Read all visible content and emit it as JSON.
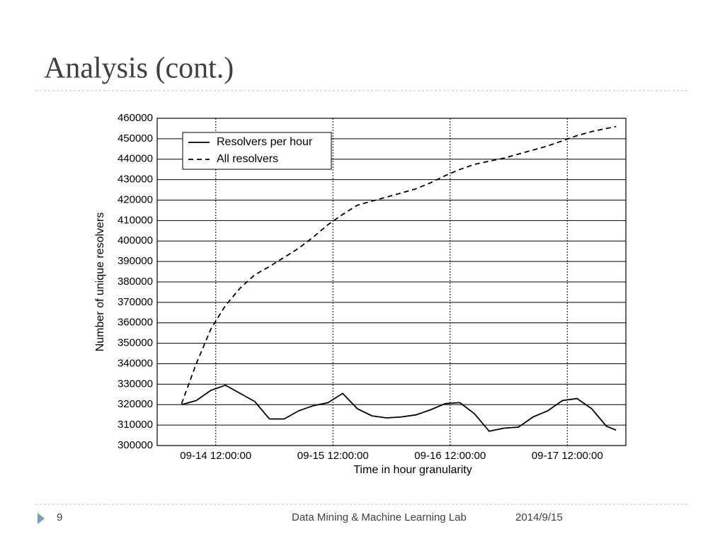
{
  "slide": {
    "title": "Analysis (cont.)",
    "page_number": "9",
    "footer": "Data Mining & Machine Learning Lab",
    "date": "2014/9/15"
  },
  "chart_data": {
    "type": "line",
    "x_label": "Time in hour granularity",
    "y_label": "Number of unique resolvers",
    "x": [
      "09-14 05:00:00",
      "09-14 08:00:00",
      "09-14 11:00:00",
      "09-14 14:00:00",
      "09-14 17:00:00",
      "09-14 20:00:00",
      "09-14 23:00:00",
      "09-15 02:00:00",
      "09-15 05:00:00",
      "09-15 08:00:00",
      "09-15 11:00:00",
      "09-15 14:00:00",
      "09-15 17:00:00",
      "09-15 20:00:00",
      "09-15 23:00:00",
      "09-16 02:00:00",
      "09-16 05:00:00",
      "09-16 08:00:00",
      "09-16 11:00:00",
      "09-16 14:00:00",
      "09-16 17:00:00",
      "09-16 20:00:00",
      "09-16 23:00:00",
      "09-17 02:00:00",
      "09-17 05:00:00",
      "09-17 08:00:00",
      "09-17 11:00:00",
      "09-17 14:00:00",
      "09-17 17:00:00",
      "09-17 20:00:00",
      "09-17 22:00:00"
    ],
    "series": [
      {
        "name": "Resolvers per hour",
        "color": "#000000",
        "dash": "solid",
        "values": [
          320000,
          322000,
          327000,
          329500,
          325500,
          321500,
          313000,
          313000,
          317000,
          319500,
          321000,
          325500,
          318000,
          314500,
          313500,
          314000,
          315000,
          317500,
          320500,
          321000,
          315500,
          307000,
          308500,
          309000,
          314000,
          317000,
          322000,
          323000,
          318000,
          309500,
          307500
        ]
      },
      {
        "name": "All resolvers",
        "color": "#000000",
        "dash": "dashed",
        "values": [
          320500,
          340000,
          357000,
          368500,
          377000,
          383500,
          387500,
          392000,
          396500,
          402000,
          408000,
          413000,
          417500,
          419500,
          421500,
          423500,
          425500,
          428500,
          432000,
          435000,
          437500,
          439000,
          440500,
          442500,
          444500,
          446500,
          449000,
          451500,
          453500,
          455000,
          456000
        ]
      }
    ],
    "xlim": [
      "09-14 00:00:00",
      "09-18 00:00:00"
    ],
    "xticks": [
      "09-14 12:00:00",
      "09-15 12:00:00",
      "09-16 12:00:00",
      "09-17 12:00:00"
    ],
    "ylim": [
      300000,
      460000
    ],
    "yticks": [
      300000,
      310000,
      320000,
      330000,
      340000,
      350000,
      360000,
      370000,
      380000,
      390000,
      400000,
      410000,
      420000,
      430000,
      440000,
      450000,
      460000
    ],
    "grid": true,
    "legend": "upper-left"
  }
}
